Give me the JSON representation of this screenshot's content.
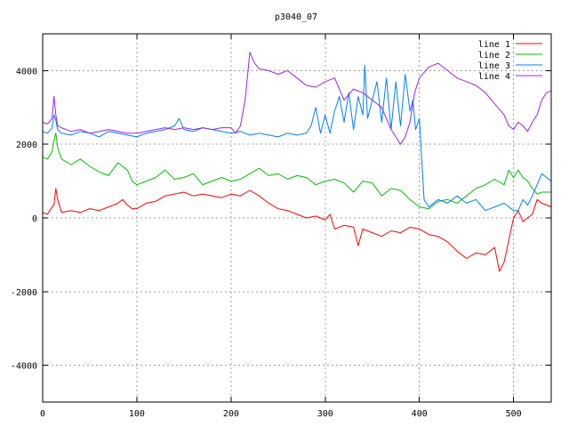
{
  "chart_data": {
    "type": "line",
    "title": "p3040_07",
    "xlabel": "",
    "ylabel": "",
    "xlim": [
      0,
      540
    ],
    "ylim": [
      -5000,
      5000
    ],
    "x_ticks": [
      0,
      100,
      200,
      300,
      400,
      500
    ],
    "y_ticks": [
      -4000,
      -2000,
      0,
      2000,
      4000
    ],
    "grid": true,
    "legend_position": "top-right",
    "series": [
      {
        "name": "line 1",
        "color": "#ff0000",
        "points": [
          [
            0,
            150
          ],
          [
            5,
            100
          ],
          [
            10,
            300
          ],
          [
            12,
            350
          ],
          [
            14,
            800
          ],
          [
            16,
            500
          ],
          [
            20,
            150
          ],
          [
            30,
            200
          ],
          [
            40,
            150
          ],
          [
            50,
            250
          ],
          [
            60,
            200
          ],
          [
            70,
            300
          ],
          [
            80,
            400
          ],
          [
            85,
            500
          ],
          [
            90,
            350
          ],
          [
            95,
            250
          ],
          [
            100,
            250
          ],
          [
            110,
            400
          ],
          [
            120,
            450
          ],
          [
            130,
            600
          ],
          [
            140,
            650
          ],
          [
            150,
            700
          ],
          [
            160,
            600
          ],
          [
            170,
            650
          ],
          [
            180,
            600
          ],
          [
            190,
            550
          ],
          [
            200,
            650
          ],
          [
            210,
            600
          ],
          [
            220,
            750
          ],
          [
            230,
            600
          ],
          [
            240,
            400
          ],
          [
            250,
            250
          ],
          [
            260,
            200
          ],
          [
            270,
            100
          ],
          [
            280,
            0
          ],
          [
            290,
            50
          ],
          [
            300,
            -50
          ],
          [
            305,
            100
          ],
          [
            310,
            -300
          ],
          [
            320,
            -200
          ],
          [
            330,
            -250
          ],
          [
            335,
            -750
          ],
          [
            340,
            -300
          ],
          [
            350,
            -400
          ],
          [
            360,
            -500
          ],
          [
            370,
            -350
          ],
          [
            380,
            -400
          ],
          [
            390,
            -250
          ],
          [
            400,
            -300
          ],
          [
            410,
            -450
          ],
          [
            420,
            -500
          ],
          [
            430,
            -650
          ],
          [
            440,
            -900
          ],
          [
            450,
            -1100
          ],
          [
            460,
            -950
          ],
          [
            470,
            -1000
          ],
          [
            480,
            -800
          ],
          [
            485,
            -1450
          ],
          [
            490,
            -1200
          ],
          [
            495,
            -600
          ],
          [
            500,
            0
          ],
          [
            505,
            200
          ],
          [
            510,
            -100
          ],
          [
            515,
            0
          ],
          [
            520,
            100
          ],
          [
            525,
            500
          ],
          [
            530,
            400
          ],
          [
            540,
            300
          ]
        ]
      },
      {
        "name": "line 2",
        "color": "#00c000",
        "points": [
          [
            0,
            1650
          ],
          [
            5,
            1600
          ],
          [
            10,
            1800
          ],
          [
            12,
            2100
          ],
          [
            14,
            2300
          ],
          [
            16,
            1900
          ],
          [
            20,
            1600
          ],
          [
            30,
            1450
          ],
          [
            40,
            1600
          ],
          [
            50,
            1400
          ],
          [
            60,
            1250
          ],
          [
            70,
            1150
          ],
          [
            80,
            1500
          ],
          [
            90,
            1300
          ],
          [
            95,
            1000
          ],
          [
            100,
            900
          ],
          [
            110,
            1000
          ],
          [
            120,
            1100
          ],
          [
            130,
            1300
          ],
          [
            140,
            1050
          ],
          [
            150,
            1100
          ],
          [
            160,
            1200
          ],
          [
            170,
            900
          ],
          [
            180,
            1000
          ],
          [
            190,
            1100
          ],
          [
            200,
            1000
          ],
          [
            210,
            1050
          ],
          [
            220,
            1200
          ],
          [
            230,
            1350
          ],
          [
            240,
            1150
          ],
          [
            250,
            1200
          ],
          [
            260,
            1050
          ],
          [
            270,
            1150
          ],
          [
            280,
            1100
          ],
          [
            290,
            900
          ],
          [
            300,
            1000
          ],
          [
            310,
            1050
          ],
          [
            320,
            950
          ],
          [
            330,
            700
          ],
          [
            340,
            1000
          ],
          [
            350,
            950
          ],
          [
            360,
            600
          ],
          [
            370,
            800
          ],
          [
            380,
            750
          ],
          [
            390,
            500
          ],
          [
            400,
            300
          ],
          [
            410,
            250
          ],
          [
            420,
            450
          ],
          [
            430,
            500
          ],
          [
            440,
            400
          ],
          [
            450,
            600
          ],
          [
            460,
            800
          ],
          [
            470,
            900
          ],
          [
            480,
            1050
          ],
          [
            490,
            900
          ],
          [
            495,
            1300
          ],
          [
            500,
            1100
          ],
          [
            505,
            1300
          ],
          [
            510,
            1100
          ],
          [
            515,
            1000
          ],
          [
            520,
            800
          ],
          [
            525,
            650
          ],
          [
            530,
            700
          ],
          [
            540,
            700
          ]
        ]
      },
      {
        "name": "line 3",
        "color": "#0080ff",
        "points": [
          [
            0,
            2350
          ],
          [
            5,
            2300
          ],
          [
            10,
            2450
          ],
          [
            12,
            2800
          ],
          [
            14,
            2650
          ],
          [
            16,
            2400
          ],
          [
            20,
            2300
          ],
          [
            30,
            2250
          ],
          [
            40,
            2350
          ],
          [
            50,
            2300
          ],
          [
            60,
            2200
          ],
          [
            70,
            2350
          ],
          [
            80,
            2300
          ],
          [
            90,
            2250
          ],
          [
            100,
            2200
          ],
          [
            110,
            2300
          ],
          [
            120,
            2350
          ],
          [
            130,
            2400
          ],
          [
            140,
            2500
          ],
          [
            145,
            2700
          ],
          [
            150,
            2400
          ],
          [
            160,
            2350
          ],
          [
            170,
            2450
          ],
          [
            180,
            2400
          ],
          [
            190,
            2350
          ],
          [
            200,
            2300
          ],
          [
            210,
            2350
          ],
          [
            220,
            2250
          ],
          [
            230,
            2300
          ],
          [
            240,
            2250
          ],
          [
            250,
            2200
          ],
          [
            260,
            2300
          ],
          [
            270,
            2250
          ],
          [
            280,
            2300
          ],
          [
            285,
            2500
          ],
          [
            290,
            3000
          ],
          [
            295,
            2300
          ],
          [
            300,
            2800
          ],
          [
            305,
            2300
          ],
          [
            310,
            2900
          ],
          [
            315,
            3300
          ],
          [
            320,
            2600
          ],
          [
            325,
            3400
          ],
          [
            330,
            2400
          ],
          [
            335,
            3300
          ],
          [
            340,
            2800
          ],
          [
            342,
            4150
          ],
          [
            345,
            2700
          ],
          [
            350,
            3200
          ],
          [
            355,
            3700
          ],
          [
            360,
            2600
          ],
          [
            365,
            3800
          ],
          [
            370,
            2400
          ],
          [
            375,
            3700
          ],
          [
            380,
            2500
          ],
          [
            385,
            3900
          ],
          [
            390,
            2900
          ],
          [
            393,
            3200
          ],
          [
            396,
            2400
          ],
          [
            400,
            2700
          ],
          [
            405,
            500
          ],
          [
            410,
            300
          ],
          [
            420,
            500
          ],
          [
            430,
            400
          ],
          [
            440,
            600
          ],
          [
            450,
            400
          ],
          [
            460,
            500
          ],
          [
            470,
            200
          ],
          [
            480,
            300
          ],
          [
            490,
            400
          ],
          [
            500,
            200
          ],
          [
            505,
            200
          ],
          [
            510,
            500
          ],
          [
            515,
            350
          ],
          [
            520,
            600
          ],
          [
            525,
            900
          ],
          [
            530,
            1200
          ],
          [
            535,
            1100
          ],
          [
            540,
            1000
          ]
        ]
      },
      {
        "name": "line 4",
        "color": "#a020f0",
        "points": [
          [
            0,
            2600
          ],
          [
            5,
            2550
          ],
          [
            10,
            2700
          ],
          [
            12,
            3300
          ],
          [
            14,
            2800
          ],
          [
            16,
            2500
          ],
          [
            20,
            2450
          ],
          [
            30,
            2350
          ],
          [
            40,
            2400
          ],
          [
            50,
            2300
          ],
          [
            60,
            2350
          ],
          [
            70,
            2400
          ],
          [
            80,
            2350
          ],
          [
            90,
            2300
          ],
          [
            100,
            2300
          ],
          [
            110,
            2350
          ],
          [
            120,
            2400
          ],
          [
            130,
            2450
          ],
          [
            140,
            2400
          ],
          [
            150,
            2450
          ],
          [
            160,
            2400
          ],
          [
            170,
            2450
          ],
          [
            180,
            2400
          ],
          [
            190,
            2450
          ],
          [
            200,
            2450
          ],
          [
            205,
            2300
          ],
          [
            210,
            2500
          ],
          [
            215,
            3200
          ],
          [
            220,
            4500
          ],
          [
            225,
            4200
          ],
          [
            230,
            4050
          ],
          [
            240,
            4000
          ],
          [
            250,
            3900
          ],
          [
            260,
            4000
          ],
          [
            270,
            3800
          ],
          [
            280,
            3600
          ],
          [
            290,
            3550
          ],
          [
            300,
            3700
          ],
          [
            310,
            3800
          ],
          [
            320,
            3200
          ],
          [
            330,
            3500
          ],
          [
            340,
            3400
          ],
          [
            350,
            3200
          ],
          [
            360,
            3000
          ],
          [
            370,
            2400
          ],
          [
            380,
            2000
          ],
          [
            385,
            2200
          ],
          [
            390,
            2600
          ],
          [
            395,
            3400
          ],
          [
            400,
            3800
          ],
          [
            410,
            4100
          ],
          [
            420,
            4200
          ],
          [
            430,
            4000
          ],
          [
            440,
            3800
          ],
          [
            450,
            3700
          ],
          [
            460,
            3600
          ],
          [
            470,
            3400
          ],
          [
            480,
            3100
          ],
          [
            490,
            2800
          ],
          [
            495,
            2500
          ],
          [
            500,
            2400
          ],
          [
            505,
            2600
          ],
          [
            510,
            2500
          ],
          [
            515,
            2350
          ],
          [
            520,
            2600
          ],
          [
            525,
            2800
          ],
          [
            530,
            3200
          ],
          [
            535,
            3400
          ],
          [
            540,
            3450
          ]
        ]
      }
    ]
  }
}
